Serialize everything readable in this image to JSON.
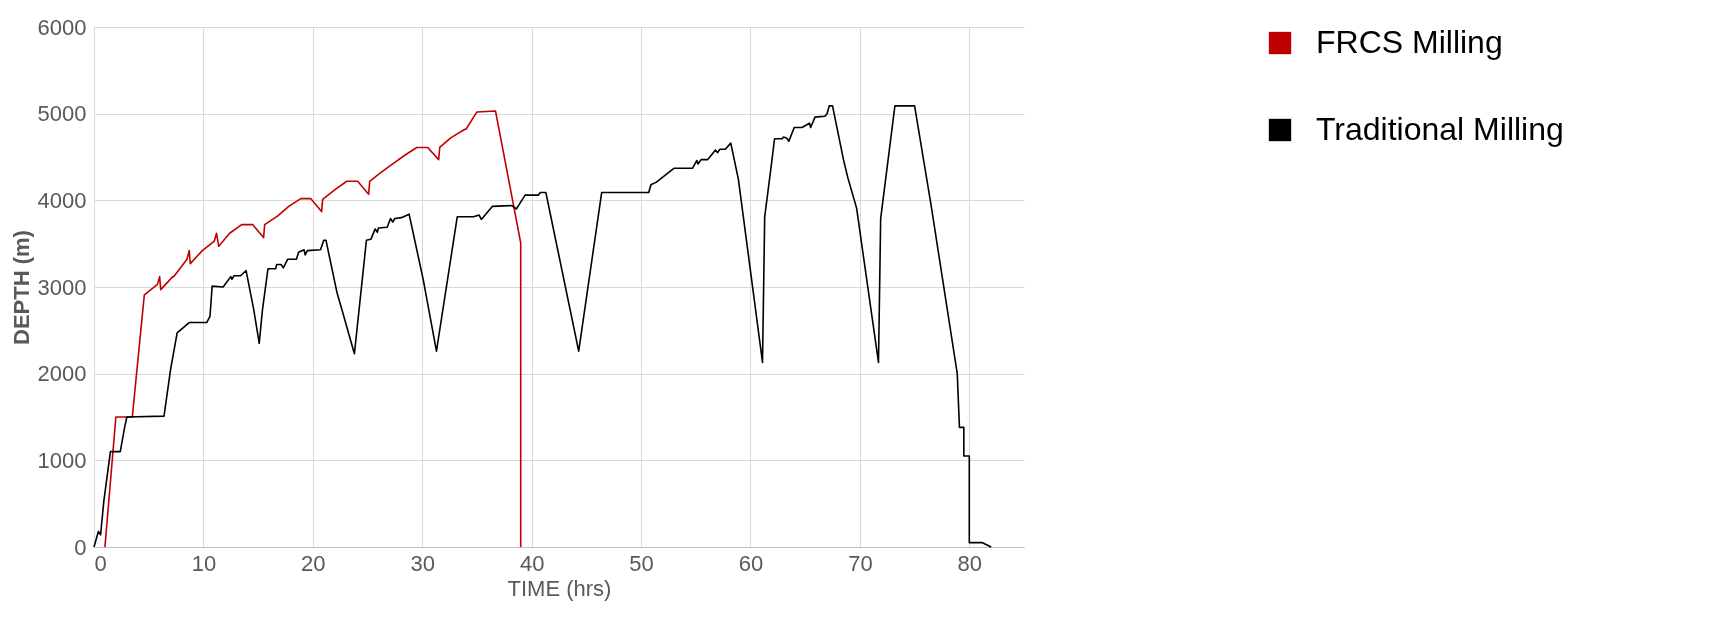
{
  "chart_data": {
    "type": "line",
    "xlabel": "TIME (hrs)",
    "ylabel": "DEPTH (m)",
    "xlim": [
      0,
      85
    ],
    "xticks": [
      0,
      10,
      20,
      30,
      40,
      50,
      60,
      70,
      80
    ],
    "ylim": [
      0,
      6000
    ],
    "yticks": [
      0,
      1000,
      2000,
      3000,
      4000,
      5000,
      6000
    ],
    "grid": true,
    "legend": "right",
    "series": [
      {
        "name": "FRCS Milling",
        "color": "#c00000",
        "x": [
          1.0,
          2.0,
          3.5,
          4.6,
          5.8,
          6.0,
          6.1,
          7.2,
          7.3,
          8.5,
          8.7,
          8.8,
          9.9,
          11.0,
          11.2,
          11.4,
          12.4,
          13.5,
          14.5,
          15.5,
          15.6,
          16.8,
          17.8,
          18.9,
          19.8,
          20.8,
          20.9,
          22.0,
          23.1,
          24.1,
          25.1,
          25.2,
          26.2,
          27.4,
          28.4,
          29.5,
          30.5,
          31.5,
          31.6,
          32.6,
          33.9,
          34.0,
          35.0,
          36.7,
          39.0,
          39.0
        ],
        "values": [
          0,
          1500,
          1500,
          2910,
          3030,
          3120,
          2970,
          3120,
          3120,
          3320,
          3420,
          3270,
          3420,
          3530,
          3620,
          3470,
          3620,
          3720,
          3720,
          3570,
          3720,
          3820,
          3930,
          4020,
          4020,
          3870,
          4010,
          4120,
          4220,
          4220,
          4070,
          4220,
          4320,
          4430,
          4520,
          4610,
          4610,
          4470,
          4610,
          4720,
          4820,
          4820,
          5020,
          5030,
          3510,
          0
        ]
      },
      {
        "name": "Traditional Milling",
        "color": "#000000",
        "x": [
          0,
          0.4,
          0.6,
          0.9,
          1.5,
          2.4,
          2.8,
          3.0,
          6.4,
          7.0,
          7.6,
          8.7,
          10.3,
          10.6,
          10.8,
          11.8,
          12.5,
          12.6,
          12.8,
          13.4,
          13.9,
          14.6,
          15.1,
          15.4,
          15.9,
          16.6,
          16.7,
          17.1,
          17.3,
          17.7,
          18.5,
          18.7,
          19.2,
          19.3,
          19.5,
          20.7,
          21.0,
          21.2,
          22.2,
          22.7,
          23.8,
          24.9,
          25.3,
          25.7,
          25.9,
          26.0,
          26.8,
          27.1,
          27.3,
          27.5,
          28.1,
          28.8,
          30.1,
          31.3,
          33.2,
          34.7,
          35.2,
          35.4,
          36.4,
          38.2,
          38.6,
          39.4,
          40.6,
          40.8,
          41.3,
          44.3,
          46.4,
          50.7,
          50.9,
          51.4,
          53.0,
          54.7,
          55.1,
          55.2,
          55.5,
          56.1,
          56.8,
          57.0,
          57.2,
          57.7,
          58.2,
          58.9,
          61.1,
          61.3,
          61.9,
          62.2,
          62.9,
          63.0,
          63.3,
          63.5,
          64.0,
          64.7,
          65.4,
          65.5,
          65.9,
          66.8,
          67.0,
          67.2,
          67.5,
          68.5,
          68.9,
          69.7,
          71.7,
          71.9,
          73.2,
          75.0,
          76.5,
          78.9,
          79.1,
          79.5,
          79.5,
          80.0,
          80.0,
          81.2,
          82.0
        ],
        "values": [
          0,
          180,
          140,
          530,
          1100,
          1100,
          1380,
          1500,
          1510,
          2050,
          2470,
          2590,
          2590,
          2660,
          3010,
          3000,
          3120,
          3090,
          3130,
          3130,
          3190,
          2740,
          2350,
          2740,
          3210,
          3210,
          3260,
          3260,
          3220,
          3320,
          3320,
          3400,
          3430,
          3370,
          3420,
          3430,
          3540,
          3540,
          2940,
          2720,
          2230,
          3540,
          3550,
          3670,
          3630,
          3680,
          3690,
          3790,
          3750,
          3790,
          3800,
          3840,
          3080,
          2260,
          3810,
          3810,
          3830,
          3780,
          3930,
          3940,
          3900,
          4060,
          4060,
          4090,
          4090,
          2260,
          4090,
          4090,
          4180,
          4210,
          4370,
          4370,
          4460,
          4420,
          4470,
          4470,
          4580,
          4550,
          4590,
          4590,
          4660,
          4240,
          2130,
          3810,
          4400,
          4710,
          4710,
          4730,
          4720,
          4680,
          4840,
          4840,
          4890,
          4840,
          4960,
          4970,
          5000,
          5090,
          5090,
          4470,
          4260,
          3910,
          2130,
          3790,
          5090,
          5090,
          3950,
          2000,
          1380,
          1380,
          1050,
          1050,
          50,
          50,
          0
        ]
      }
    ]
  }
}
